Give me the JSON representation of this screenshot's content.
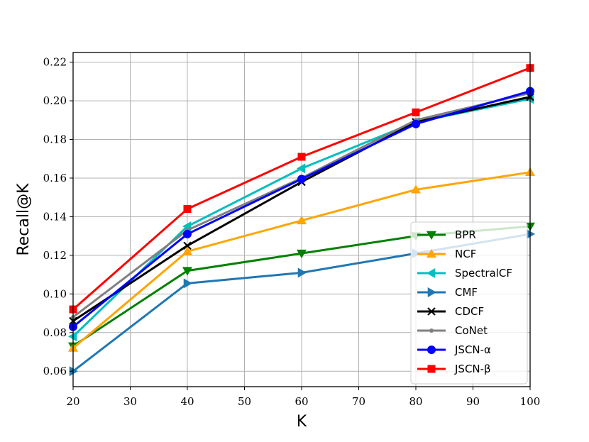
{
  "chart_data": {
    "type": "line",
    "xlabel": "K",
    "ylabel": "Recall@K",
    "x": [
      20,
      40,
      60,
      80,
      100
    ],
    "xlim": [
      20,
      100
    ],
    "ylim": [
      0.052,
      0.225
    ],
    "xticks": [
      "20",
      "30",
      "40",
      "50",
      "60",
      "70",
      "80",
      "90",
      "100"
    ],
    "yticks": [
      "0.06",
      "0.08",
      "0.10",
      "0.12",
      "0.14",
      "0.16",
      "0.18",
      "0.20",
      "0.22"
    ],
    "grid": true,
    "legend_position": "lower-right",
    "series": [
      {
        "name": "BPR",
        "values": [
          0.073,
          0.112,
          0.121,
          0.13,
          0.135
        ],
        "color": "#008000",
        "marker": "triangle-down"
      },
      {
        "name": "NCF",
        "values": [
          0.072,
          0.122,
          0.138,
          0.154,
          0.163
        ],
        "color": "#ffa500",
        "marker": "triangle-up"
      },
      {
        "name": "SpectralCF",
        "values": [
          0.078,
          0.135,
          0.165,
          0.189,
          0.201
        ],
        "color": "#00bfbf",
        "marker": "triangle-left"
      },
      {
        "name": "CMF",
        "values": [
          0.06,
          0.1055,
          0.111,
          0.121,
          0.131
        ],
        "color": "#1f77b4",
        "marker": "triangle-right"
      },
      {
        "name": "CDCF",
        "values": [
          0.086,
          0.125,
          0.158,
          0.189,
          0.202
        ],
        "color": "#000000",
        "marker": "x"
      },
      {
        "name": "CoNet",
        "values": [
          0.088,
          0.133,
          0.16,
          0.19,
          0.204
        ],
        "color": "#808080",
        "marker": "point"
      },
      {
        "name": "JSCN-α",
        "values": [
          0.083,
          0.131,
          0.1595,
          0.188,
          0.205
        ],
        "color": "#0000ff",
        "marker": "circle"
      },
      {
        "name": "JSCN-β",
        "values": [
          0.092,
          0.144,
          0.171,
          0.194,
          0.217
        ],
        "color": "#ff0000",
        "marker": "square"
      }
    ]
  }
}
